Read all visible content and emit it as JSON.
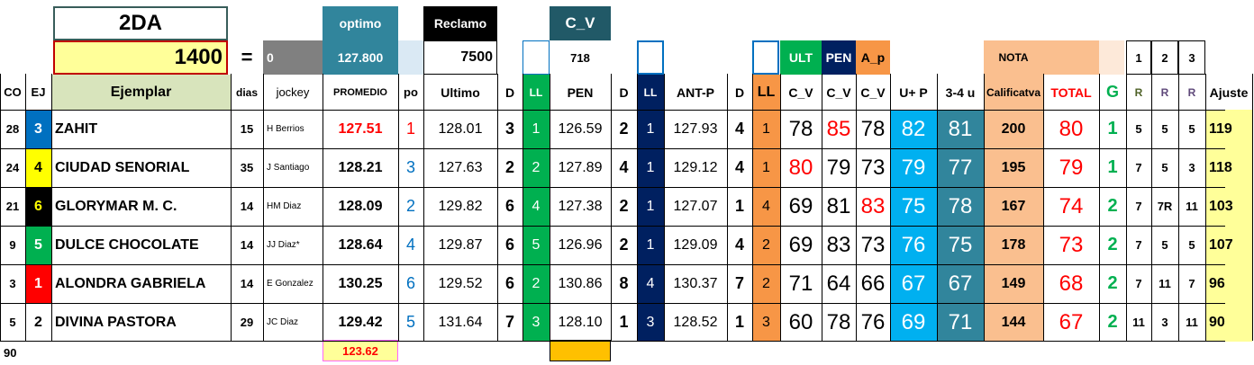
{
  "header": {
    "race": "2DA",
    "distance": "1400",
    "equals": "=",
    "zero": "0",
    "optimo_label": "optimo",
    "optimo_value": "127.800",
    "reclamo_label": "Reclamo",
    "reclamo_value": "7500",
    "cv_label": "C_V",
    "cv_value": "718",
    "ult": "ULT",
    "pen": "PEN",
    "ap": "A_p",
    "nota": "NOTA",
    "r1": "1",
    "r2": "2",
    "r3": "3"
  },
  "columns": [
    "CO",
    "EJ",
    "Ejemplar",
    "dias",
    "jockey",
    "PROMEDIO",
    "po",
    "Ultimo",
    "D",
    "LL",
    "PEN",
    "D",
    "LL",
    "ANT-P",
    "D",
    "LL",
    "C_V",
    "C_V",
    "C_V",
    "U+ P",
    "3-4 u",
    "Calificatva",
    "TOTAL",
    "G",
    "R",
    "R",
    "R",
    "Ajuste"
  ],
  "colors": {
    "title_border": "#385d5a",
    "distance_bg": "#ffff99",
    "distance_border": "#c00000",
    "optimo_bg": "#31859c",
    "reclamo_bg": "#000000",
    "cv_bg": "#215967",
    "gray_bg": "#808080",
    "ejemplar_header_bg": "#d8e4bc",
    "ll_green": "#00b050",
    "ll_navy": "#002060",
    "ll_orange": "#f79646",
    "up_blue": "#00b0f0",
    "u34_teal": "#31859c",
    "nota_bg": "#fabf8f",
    "ajuste_bg": "#ffff99",
    "red": "#ff0000",
    "blue": "#0070c0",
    "green": "#00b050"
  },
  "rows": [
    {
      "co": "28",
      "ej": "3",
      "ej_bg": "#0070c0",
      "ej_fg": "#ffffff",
      "name": "ZAHIT",
      "dias": "15",
      "jockey": "H Berrios",
      "promedio": "127.51",
      "prom_red": true,
      "po": "1",
      "po_red": true,
      "ultimo": "128.01",
      "d1": "3",
      "ll1": "1",
      "pen": "126.59",
      "d2": "2",
      "ll2": "1",
      "antp": "127.93",
      "d3": "4",
      "ll3": "1",
      "cv1": "78",
      "cv1_red": false,
      "cv2": "85",
      "cv2_red": true,
      "cv3": "78",
      "cv3_red": false,
      "up": "82",
      "u34": "81",
      "calif": "200",
      "total": "80",
      "g": "1",
      "ra": "5",
      "rb": "5",
      "rc": "5",
      "ajuste": "119"
    },
    {
      "co": "24",
      "ej": "4",
      "ej_bg": "#ffff00",
      "ej_fg": "#000000",
      "name": "CIUDAD SENORIAL",
      "dias": "35",
      "jockey": "J Santiago",
      "promedio": "128.21",
      "prom_red": false,
      "po": "3",
      "po_red": false,
      "ultimo": "127.63",
      "d1": "2",
      "ll1": "2",
      "pen": "127.89",
      "d2": "4",
      "ll2": "1",
      "antp": "129.12",
      "d3": "4",
      "ll3": "1",
      "cv1": "80",
      "cv1_red": true,
      "cv2": "79",
      "cv2_red": false,
      "cv3": "73",
      "cv3_red": false,
      "up": "79",
      "u34": "77",
      "calif": "195",
      "total": "79",
      "g": "1",
      "ra": "7",
      "rb": "5",
      "rc": "3",
      "ajuste": "118"
    },
    {
      "co": "21",
      "ej": "6",
      "ej_bg": "#000000",
      "ej_fg": "#ffff00",
      "name": "GLORYMAR M. C.",
      "dias": "14",
      "jockey": "HM Diaz",
      "promedio": "128.09",
      "prom_red": false,
      "po": "2",
      "po_red": false,
      "ultimo": "129.82",
      "d1": "6",
      "ll1": "4",
      "pen": "127.38",
      "d2": "2",
      "ll2": "1",
      "antp": "127.07",
      "d3": "1",
      "ll3": "4",
      "cv1": "69",
      "cv1_red": false,
      "cv2": "81",
      "cv2_red": false,
      "cv3": "83",
      "cv3_red": true,
      "up": "75",
      "u34": "78",
      "calif": "167",
      "total": "74",
      "g": "2",
      "ra": "7",
      "rb": "7R",
      "rc": "11",
      "ajuste": "103"
    },
    {
      "co": "9",
      "ej": "5",
      "ej_bg": "#00b050",
      "ej_fg": "#ffffff",
      "name": "DULCE CHOCOLATE",
      "dias": "14",
      "jockey": "JJ Diaz*",
      "promedio": "128.64",
      "prom_red": false,
      "po": "4",
      "po_red": false,
      "ultimo": "129.87",
      "d1": "6",
      "ll1": "5",
      "pen": "126.96",
      "d2": "2",
      "ll2": "1",
      "antp": "129.09",
      "d3": "4",
      "ll3": "2",
      "cv1": "69",
      "cv1_red": false,
      "cv2": "83",
      "cv2_red": false,
      "cv3": "73",
      "cv3_red": false,
      "up": "76",
      "u34": "75",
      "calif": "178",
      "total": "73",
      "g": "2",
      "ra": "7",
      "rb": "5",
      "rc": "5",
      "ajuste": "107"
    },
    {
      "co": "3",
      "ej": "1",
      "ej_bg": "#ff0000",
      "ej_fg": "#ffffff",
      "name": "ALONDRA GABRIELA",
      "dias": "14",
      "jockey": "E Gonzalez",
      "promedio": "130.25",
      "prom_red": false,
      "po": "6",
      "po_red": false,
      "ultimo": "129.52",
      "d1": "6",
      "ll1": "2",
      "pen": "130.86",
      "d2": "8",
      "ll2": "4",
      "antp": "130.37",
      "d3": "7",
      "ll3": "2",
      "cv1": "71",
      "cv1_red": false,
      "cv2": "64",
      "cv2_red": false,
      "cv3": "66",
      "cv3_red": false,
      "up": "67",
      "u34": "67",
      "calif": "149",
      "total": "68",
      "g": "2",
      "ra": "7",
      "rb": "11",
      "rc": "7",
      "ajuste": "96"
    },
    {
      "co": "5",
      "ej": "2",
      "ej_bg": "#ffffff",
      "ej_fg": "#000000",
      "name": "DIVINA PASTORA",
      "dias": "29",
      "jockey": "JC Diaz",
      "promedio": "129.42",
      "prom_red": false,
      "po": "5",
      "po_red": false,
      "ultimo": "131.64",
      "d1": "7",
      "ll1": "3",
      "pen": "128.10",
      "d2": "1",
      "ll2": "3",
      "antp": "128.52",
      "d3": "1",
      "ll3": "3",
      "cv1": "60",
      "cv1_red": false,
      "cv2": "78",
      "cv2_red": false,
      "cv3": "76",
      "cv3_red": false,
      "up": "69",
      "u34": "71",
      "calif": "144",
      "total": "67",
      "g": "2",
      "ra": "11",
      "rb": "3",
      "rc": "11",
      "ajuste": "90"
    }
  ],
  "footer": {
    "co_total": "90",
    "promedio_total": "123.62"
  }
}
